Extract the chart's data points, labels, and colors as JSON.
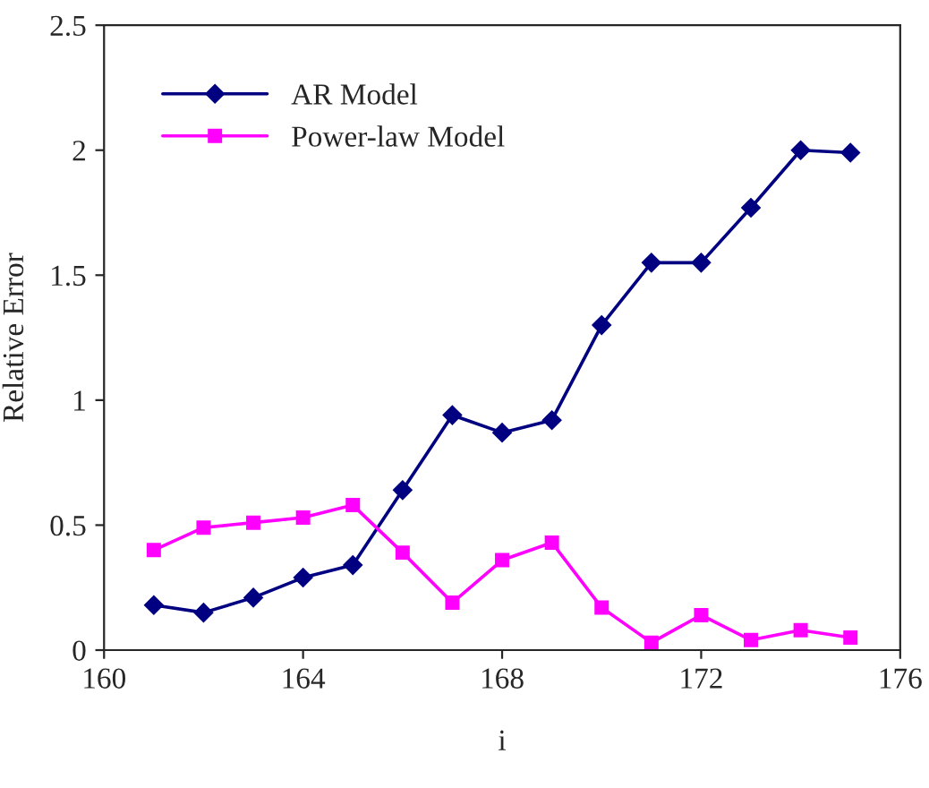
{
  "chart_data": {
    "type": "line",
    "xlabel": "i",
    "ylabel": "Relative Error",
    "x": [
      161,
      162,
      163,
      164,
      165,
      166,
      167,
      168,
      169,
      170,
      171,
      172,
      173,
      174,
      175
    ],
    "series": [
      {
        "name": "AR Model",
        "color": "#000080",
        "marker": "diamond",
        "values": [
          0.18,
          0.15,
          0.21,
          0.29,
          0.34,
          0.64,
          0.94,
          0.87,
          0.92,
          1.3,
          1.55,
          1.55,
          1.77,
          2.0,
          1.99
        ]
      },
      {
        "name": "Power-law Model",
        "color": "#ff00ff",
        "marker": "square",
        "values": [
          0.4,
          0.49,
          0.51,
          0.53,
          0.58,
          0.39,
          0.19,
          0.36,
          0.43,
          0.17,
          0.03,
          0.14,
          0.04,
          0.08,
          0.05
        ]
      }
    ],
    "xlim": [
      160,
      176
    ],
    "xticks": [
      160,
      164,
      168,
      172,
      176
    ],
    "ylim": [
      0,
      2.5
    ],
    "yticks": [
      0,
      0.5,
      1,
      1.5,
      2,
      2.5
    ],
    "grid": false,
    "legend": "top left",
    "line_style": "solid"
  }
}
